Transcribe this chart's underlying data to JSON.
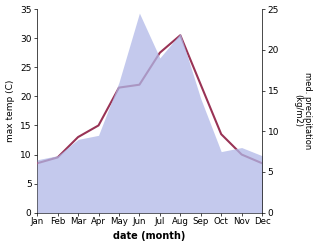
{
  "months": [
    "Jan",
    "Feb",
    "Mar",
    "Apr",
    "May",
    "Jun",
    "Jul",
    "Aug",
    "Sep",
    "Oct",
    "Nov",
    "Dec"
  ],
  "temp": [
    8.5,
    9.5,
    13.0,
    15.0,
    21.5,
    22.0,
    27.5,
    30.5,
    22.0,
    13.5,
    10.0,
    8.5
  ],
  "precip": [
    6.5,
    7.0,
    9.0,
    9.5,
    16.0,
    24.5,
    19.0,
    22.0,
    14.0,
    7.5,
    8.0,
    7.0
  ],
  "temp_ylim": [
    0,
    35
  ],
  "precip_ylim": [
    0,
    25
  ],
  "temp_color": "#993355",
  "precip_color": "#b0b8e8",
  "precip_alpha": 0.75,
  "xlabel": "date (month)",
  "ylabel_left": "max temp (C)",
  "ylabel_right": "med. precipitation\n(kg/m2)",
  "yticks_left": [
    0,
    5,
    10,
    15,
    20,
    25,
    30,
    35
  ],
  "yticks_right": [
    0,
    5,
    10,
    15,
    20,
    25
  ],
  "temp_linewidth": 1.5,
  "bg_color": "#ffffff"
}
